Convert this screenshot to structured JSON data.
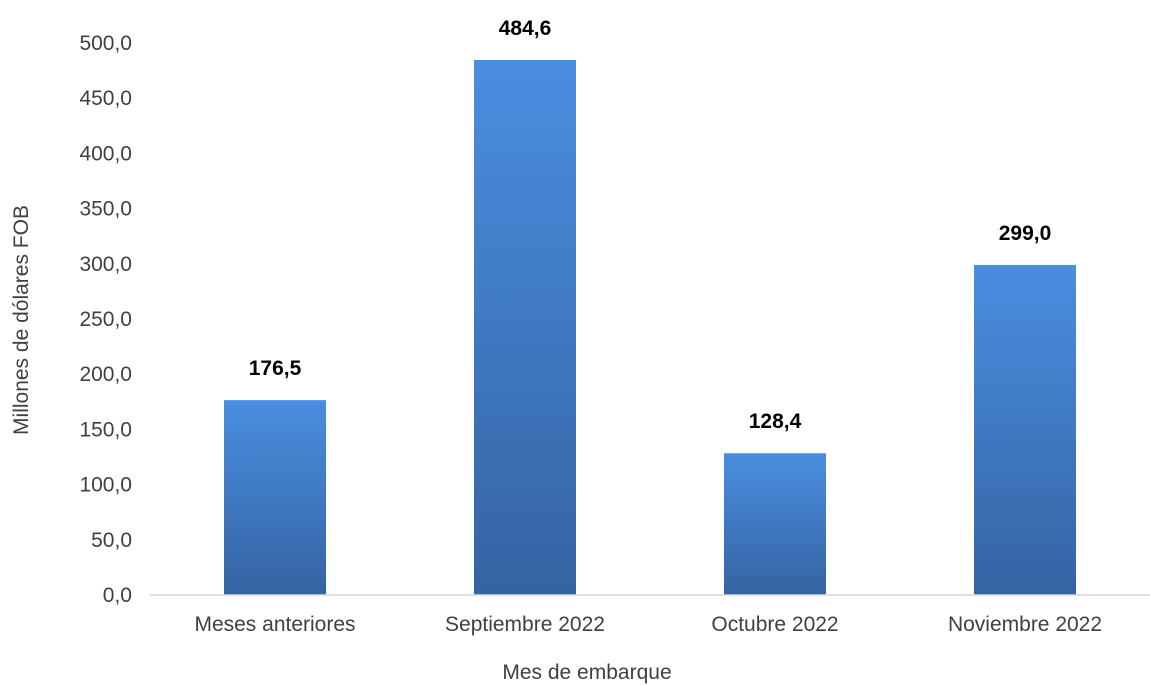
{
  "chart_data": {
    "type": "bar",
    "categories": [
      "Meses anteriores",
      "Septiembre 2022",
      "Octubre 2022",
      "Noviembre 2022"
    ],
    "values": [
      176.5,
      484.6,
      128.4,
      299.0
    ],
    "value_labels": [
      "176,5",
      "484,6",
      "128,4",
      "299,0"
    ],
    "title": "",
    "xlabel": "Mes de embarque",
    "ylabel": "Millones de dólares FOB",
    "ylim": [
      0,
      500
    ],
    "yticks": [
      0,
      50,
      100,
      150,
      200,
      250,
      300,
      350,
      400,
      450,
      500
    ],
    "ytick_labels": [
      "0,0",
      "50,0",
      "100,0",
      "150,0",
      "200,0",
      "250,0",
      "300,0",
      "350,0",
      "400,0",
      "450,0",
      "500,0"
    ],
    "grid": false,
    "legend": "none",
    "colors": {
      "bar_top": "#4A8EE0",
      "bar_bottom": "#3563A3",
      "axis": "#D9D9D9",
      "text": "#404040",
      "label": "#000000"
    }
  }
}
